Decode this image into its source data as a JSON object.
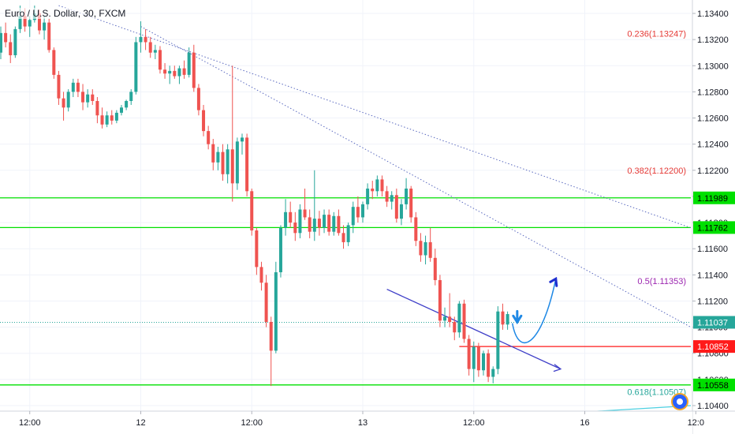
{
  "symbol_title": "Euro / U.S. Dollar, 30, FXCM",
  "colors": {
    "bull": "#26a69a",
    "bear": "#ef5350",
    "hline_green": "#00e000",
    "hline_red": "#ff1a1a",
    "current_price": "#26a69a",
    "fib_236": "#e53935",
    "fib_382": "#e53935",
    "fib_50": "#9c27b0",
    "fib_618": "#26a69a",
    "trendline_dotted": "#5c6bc0",
    "channel_line": "#3f3fc8",
    "projection_arrow": "#1e88e5",
    "bottom_trend": "#4dd0e1"
  },
  "chart_data": {
    "type": "candlestick",
    "title": "Euro / U.S. Dollar, 30, FXCM",
    "xlabel": "",
    "ylabel": "",
    "ylim": [
      1.1034,
      1.1346
    ],
    "y_ticks": [
      "1.13400",
      "1.13200",
      "1.13000",
      "1.12800",
      "1.12600",
      "1.12400",
      "1.12200",
      "1.12000",
      "1.11800",
      "1.11600",
      "1.11400",
      "1.11200",
      "1.11000",
      "1.10800",
      "1.10600",
      "1.10400"
    ],
    "x_ticks": [
      {
        "label": "12:00",
        "bar": 6
      },
      {
        "label": "12",
        "bar": 29
      },
      {
        "label": "12:00",
        "bar": 52
      },
      {
        "label": "13",
        "bar": 75
      },
      {
        "label": "12:00",
        "bar": 98
      },
      {
        "label": "16",
        "bar": 121
      },
      {
        "label": "12:0",
        "bar": 144
      }
    ],
    "candles": [
      [
        1.131,
        1.133,
        1.1305,
        1.1325
      ],
      [
        1.1325,
        1.1333,
        1.1314,
        1.1318
      ],
      [
        1.1318,
        1.1324,
        1.1302,
        1.1308
      ],
      [
        1.1308,
        1.133,
        1.1306,
        1.1328
      ],
      [
        1.1328,
        1.1346,
        1.1325,
        1.1338
      ],
      [
        1.1338,
        1.1344,
        1.1326,
        1.133
      ],
      [
        1.133,
        1.1338,
        1.1322,
        1.1335
      ],
      [
        1.1335,
        1.1346,
        1.1333,
        1.134
      ],
      [
        1.134,
        1.1343,
        1.1324,
        1.1327
      ],
      [
        1.1327,
        1.1338,
        1.132,
        1.1333
      ],
      [
        1.1333,
        1.1336,
        1.131,
        1.1312
      ],
      [
        1.1312,
        1.1314,
        1.129,
        1.1293
      ],
      [
        1.1293,
        1.1296,
        1.127,
        1.1275
      ],
      [
        1.1275,
        1.128,
        1.1258,
        1.1268
      ],
      [
        1.1268,
        1.1282,
        1.1265,
        1.128
      ],
      [
        1.128,
        1.129,
        1.1276,
        1.1287
      ],
      [
        1.1287,
        1.129,
        1.1276,
        1.128
      ],
      [
        1.128,
        1.1286,
        1.1266,
        1.1272
      ],
      [
        1.1272,
        1.1282,
        1.1268,
        1.1278
      ],
      [
        1.1278,
        1.1282,
        1.127,
        1.1273
      ],
      [
        1.1273,
        1.1276,
        1.1256,
        1.1262
      ],
      [
        1.1262,
        1.1268,
        1.1252,
        1.1255
      ],
      [
        1.1255,
        1.1265,
        1.1253,
        1.1262
      ],
      [
        1.1262,
        1.1266,
        1.1255,
        1.1258
      ],
      [
        1.1258,
        1.1266,
        1.1256,
        1.1264
      ],
      [
        1.1264,
        1.127,
        1.1262,
        1.1268
      ],
      [
        1.1268,
        1.1274,
        1.1266,
        1.1273
      ],
      [
        1.1273,
        1.1282,
        1.127,
        1.128
      ],
      [
        1.128,
        1.1322,
        1.1278,
        1.1318
      ],
      [
        1.1318,
        1.1334,
        1.131,
        1.1322
      ],
      [
        1.1322,
        1.1328,
        1.1312,
        1.1318
      ],
      [
        1.1318,
        1.1322,
        1.1306,
        1.131
      ],
      [
        1.131,
        1.1316,
        1.1305,
        1.1312
      ],
      [
        1.1312,
        1.1315,
        1.1294,
        1.1297
      ],
      [
        1.1297,
        1.1302,
        1.129,
        1.1294
      ],
      [
        1.1294,
        1.13,
        1.1286,
        1.1296
      ],
      [
        1.1296,
        1.13,
        1.129,
        1.1292
      ],
      [
        1.1292,
        1.13,
        1.1286,
        1.1298
      ],
      [
        1.1298,
        1.1304,
        1.129,
        1.1293
      ],
      [
        1.1293,
        1.1314,
        1.1291,
        1.131
      ],
      [
        1.131,
        1.1316,
        1.128,
        1.1283
      ],
      [
        1.1283,
        1.1286,
        1.1262,
        1.1266
      ],
      [
        1.1266,
        1.127,
        1.1246,
        1.125
      ],
      [
        1.125,
        1.1254,
        1.1236,
        1.124
      ],
      [
        1.124,
        1.1244,
        1.122,
        1.1226
      ],
      [
        1.1226,
        1.1238,
        1.122,
        1.1234
      ],
      [
        1.1234,
        1.124,
        1.1212,
        1.1217
      ],
      [
        1.1217,
        1.124,
        1.121,
        1.1236
      ],
      [
        1.1236,
        1.13,
        1.1196,
        1.121
      ],
      [
        1.121,
        1.1245,
        1.1205,
        1.1242
      ],
      [
        1.1242,
        1.1248,
        1.1232,
        1.1245
      ],
      [
        1.1245,
        1.1248,
        1.12,
        1.1204
      ],
      [
        1.1204,
        1.1206,
        1.117,
        1.1174
      ],
      [
        1.1174,
        1.1176,
        1.114,
        1.1146
      ],
      [
        1.1146,
        1.115,
        1.1128,
        1.1134
      ],
      [
        1.1134,
        1.114,
        1.11,
        1.1104
      ],
      [
        1.1104,
        1.1108,
        1.1055,
        1.1082
      ],
      [
        1.1082,
        1.115,
        1.108,
        1.1142
      ],
      [
        1.1142,
        1.1178,
        1.1138,
        1.1176
      ],
      [
        1.1176,
        1.1198,
        1.117,
        1.1188
      ],
      [
        1.1188,
        1.1196,
        1.1176,
        1.118
      ],
      [
        1.118,
        1.1188,
        1.1166,
        1.1172
      ],
      [
        1.1172,
        1.1194,
        1.1168,
        1.119
      ],
      [
        1.119,
        1.1206,
        1.1182,
        1.1184
      ],
      [
        1.1184,
        1.119,
        1.1168,
        1.1173
      ],
      [
        1.1173,
        1.122,
        1.1166,
        1.1183
      ],
      [
        1.1183,
        1.1189,
        1.117,
        1.1176
      ],
      [
        1.1176,
        1.119,
        1.1172,
        1.1186
      ],
      [
        1.1186,
        1.119,
        1.117,
        1.1173
      ],
      [
        1.1173,
        1.1188,
        1.117,
        1.1185
      ],
      [
        1.1185,
        1.119,
        1.117,
        1.1172
      ],
      [
        1.1172,
        1.1178,
        1.116,
        1.1165
      ],
      [
        1.1165,
        1.118,
        1.1162,
        1.1178
      ],
      [
        1.1178,
        1.1196,
        1.1172,
        1.1192
      ],
      [
        1.1192,
        1.12,
        1.118,
        1.1184
      ],
      [
        1.1184,
        1.1196,
        1.118,
        1.1194
      ],
      [
        1.1194,
        1.121,
        1.119,
        1.1206
      ],
      [
        1.1206,
        1.1212,
        1.1198,
        1.1204
      ],
      [
        1.1204,
        1.1216,
        1.12,
        1.1213
      ],
      [
        1.1213,
        1.1216,
        1.12,
        1.1204
      ],
      [
        1.1204,
        1.1208,
        1.1192,
        1.1196
      ],
      [
        1.1196,
        1.1204,
        1.119,
        1.1201
      ],
      [
        1.1201,
        1.1206,
        1.118,
        1.1183
      ],
      [
        1.1183,
        1.1198,
        1.1178,
        1.1194
      ],
      [
        1.1194,
        1.1214,
        1.119,
        1.1206
      ],
      [
        1.1206,
        1.1208,
        1.118,
        1.1184
      ],
      [
        1.1184,
        1.1188,
        1.1162,
        1.1166
      ],
      [
        1.1166,
        1.1172,
        1.115,
        1.1155
      ],
      [
        1.1155,
        1.117,
        1.1148,
        1.1165
      ],
      [
        1.1165,
        1.1176,
        1.115,
        1.1153
      ],
      [
        1.1153,
        1.116,
        1.1132,
        1.1136
      ],
      [
        1.1136,
        1.114,
        1.11,
        1.1105
      ],
      [
        1.1105,
        1.1115,
        1.11,
        1.1108
      ],
      [
        1.1108,
        1.1126,
        1.11,
        1.1104
      ],
      [
        1.1104,
        1.1108,
        1.109,
        1.1096
      ],
      [
        1.1096,
        1.112,
        1.1092,
        1.1118
      ],
      [
        1.1118,
        1.1121,
        1.1088,
        1.1091
      ],
      [
        1.1091,
        1.1094,
        1.1063,
        1.1068
      ],
      [
        1.1068,
        1.1089,
        1.1058,
        1.1085
      ],
      [
        1.1085,
        1.1088,
        1.1062,
        1.1067
      ],
      [
        1.1067,
        1.1082,
        1.1063,
        1.108
      ],
      [
        1.108,
        1.1083,
        1.1058,
        1.1062
      ],
      [
        1.1062,
        1.107,
        1.1057,
        1.1068
      ],
      [
        1.1068,
        1.1116,
        1.1064,
        1.1112
      ],
      [
        1.1112,
        1.1118,
        1.1098,
        1.1102
      ],
      [
        1.1102,
        1.1112,
        1.1098,
        1.111
      ]
    ],
    "horizontal_levels": [
      {
        "label": "1.11989",
        "value": 1.11989,
        "color": "hline_green",
        "style": "solid"
      },
      {
        "label": "1.11762",
        "value": 1.11762,
        "color": "hline_green",
        "style": "solid"
      },
      {
        "label": "1.11037",
        "value": 1.11037,
        "color": "current_price",
        "style": "dotted"
      },
      {
        "label": "1.10852",
        "value": 1.10852,
        "color": "hline_red",
        "style": "solid",
        "from_bar": 95
      },
      {
        "label": "1.10558",
        "value": 1.10558,
        "color": "hline_green",
        "style": "solid"
      }
    ],
    "fib_labels": [
      {
        "label": "0.236(1.13247)",
        "value": 1.13247,
        "color": "fib_236"
      },
      {
        "label": "0.382(1.12200)",
        "value": 1.122,
        "color": "fib_382"
      },
      {
        "label": "0.5(1.11353)",
        "value": 1.11353,
        "color": "fib_50"
      },
      {
        "label": "0.618(1.10507)",
        "value": 1.10507,
        "color": "fib_618"
      }
    ],
    "trend_lines": [
      {
        "from": [
          12,
          1.1346
        ],
        "to": [
          152,
          1.1176
        ],
        "style": "dotted",
        "color": "trendline_dotted"
      },
      {
        "from": [
          29,
          1.133
        ],
        "to": [
          152,
          1.11
        ],
        "style": "dotted",
        "color": "trendline_dotted"
      },
      {
        "from": [
          80,
          1.1129
        ],
        "to": [
          116,
          1.1068
        ],
        "style": "solid",
        "color": "channel_line"
      },
      {
        "from": [
          98,
          1.103
        ],
        "to": [
          152,
          1.104
        ],
        "style": "solid",
        "color": "bottom_trend"
      }
    ],
    "annotations": [
      {
        "type": "down-arrow",
        "at": [
          107,
          1.1105
        ],
        "color": "projection_arrow"
      },
      {
        "type": "curve-arrow",
        "from": [
          106,
          1.1103
        ],
        "to": [
          115,
          1.1137
        ],
        "color": "projection_arrow"
      }
    ]
  }
}
